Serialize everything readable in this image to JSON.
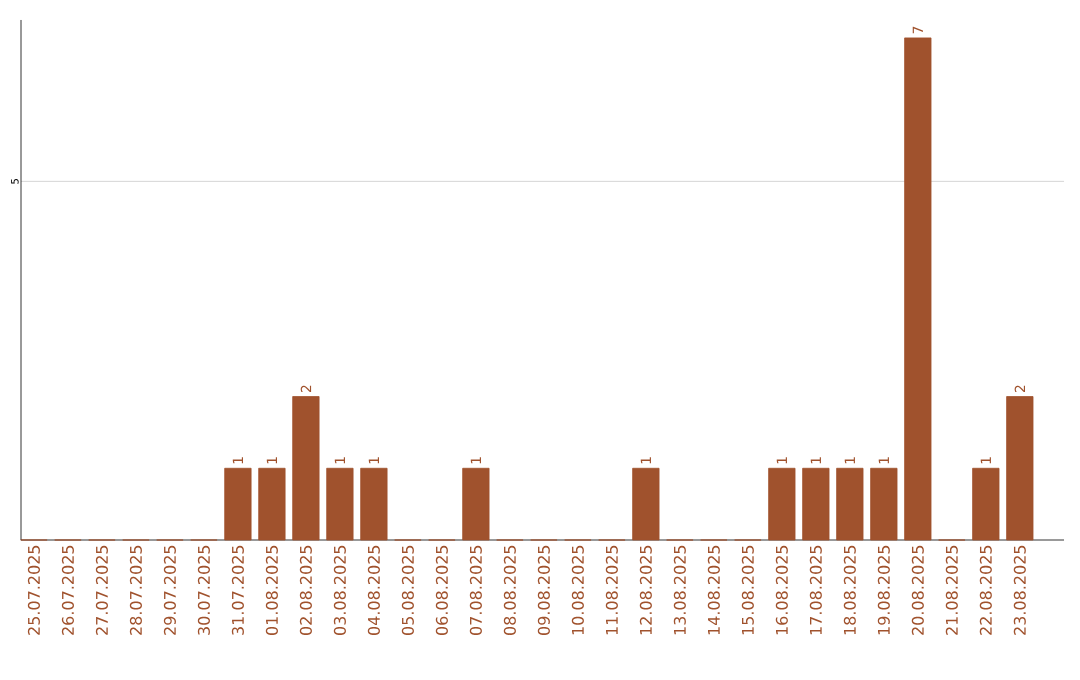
{
  "chart_data": {
    "type": "bar",
    "categories": [
      "25.07.2025",
      "26.07.2025",
      "27.07.2025",
      "28.07.2025",
      "29.07.2025",
      "30.07.2025",
      "31.07.2025",
      "01.08.2025",
      "02.08.2025",
      "03.08.2025",
      "04.08.2025",
      "05.08.2025",
      "06.08.2025",
      "07.08.2025",
      "08.08.2025",
      "09.08.2025",
      "10.08.2025",
      "11.08.2025",
      "12.08.2025",
      "13.08.2025",
      "14.08.2025",
      "15.08.2025",
      "16.08.2025",
      "17.08.2025",
      "18.08.2025",
      "19.08.2025",
      "20.08.2025",
      "21.08.2025",
      "22.08.2025",
      "23.08.2025"
    ],
    "values": [
      0,
      0,
      0,
      0,
      0,
      0,
      1,
      1,
      2,
      1,
      1,
      0,
      0,
      1,
      0,
      0,
      0,
      0,
      1,
      0,
      0,
      0,
      1,
      1,
      1,
      1,
      7,
      0,
      1,
      2
    ],
    "value_labels": [
      null,
      null,
      null,
      null,
      null,
      null,
      "1",
      "1",
      "2",
      "1",
      "1",
      null,
      null,
      "1",
      null,
      null,
      null,
      null,
      "1",
      null,
      null,
      null,
      "1",
      "1",
      "1",
      "1",
      "7",
      null,
      "1",
      "2"
    ],
    "color": "#a0522d",
    "ylim": [
      0,
      7.25
    ],
    "yticks": [
      5
    ],
    "grid": "y"
  }
}
